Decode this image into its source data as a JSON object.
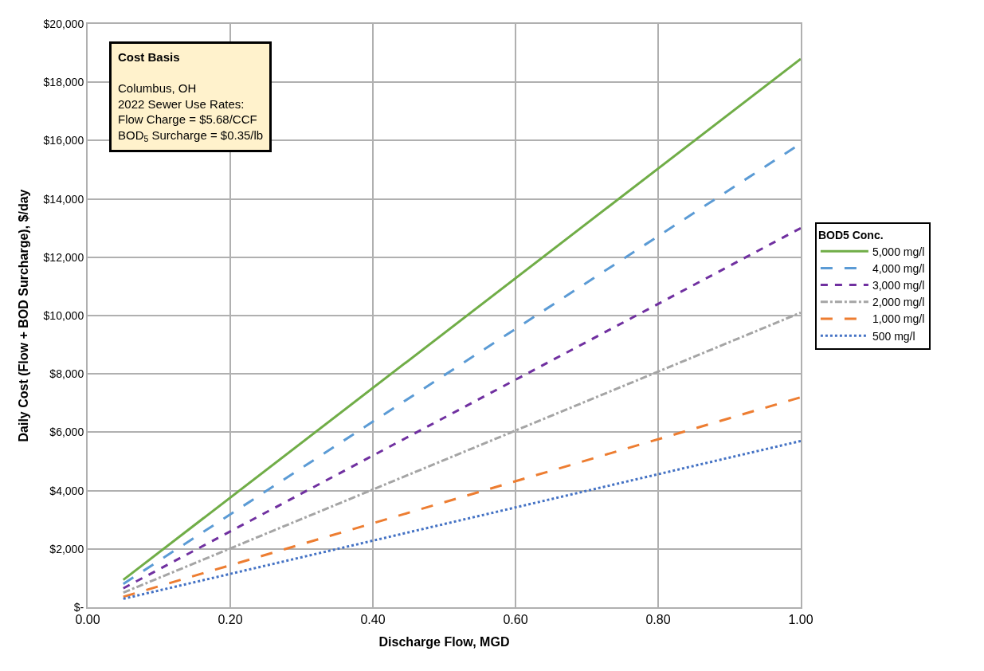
{
  "chart_data": {
    "type": "line",
    "xlabel": "Discharge Flow, MGD",
    "ylabel": "Daily Cost (Flow + BOD Surcharge), $/day",
    "legend_title": "BOD5 Conc.",
    "x": [
      0.05,
      1.0
    ],
    "series": [
      {
        "name": "5,000 mg/l",
        "color": "#70ad47",
        "line_style": "solid",
        "values": [
          940,
          18800
        ]
      },
      {
        "name": "4,000 mg/l",
        "color": "#5b9bd5",
        "line_style": "longdash",
        "values": [
          800,
          15900
        ]
      },
      {
        "name": "3,000 mg/l",
        "color": "#7030a0",
        "line_style": "dashed",
        "values": [
          650,
          13000
        ]
      },
      {
        "name": "2,000 mg/l",
        "color": "#a5a5a5",
        "line_style": "dashdot",
        "values": [
          500,
          10100
        ]
      },
      {
        "name": "1,000 mg/l",
        "color": "#ed7d31",
        "line_style": "longdash",
        "values": [
          360,
          7200
        ]
      },
      {
        "name": "500 mg/l",
        "color": "#4472c4",
        "line_style": "dotted",
        "values": [
          290,
          5700
        ]
      }
    ],
    "xlim": [
      0,
      1.0
    ],
    "xticks": [
      {
        "value": 0,
        "label": "0.00"
      },
      {
        "value": 0.2,
        "label": "0.20"
      },
      {
        "value": 0.4,
        "label": "0.40"
      },
      {
        "value": 0.6,
        "label": "0.60"
      },
      {
        "value": 0.8,
        "label": "0.80"
      },
      {
        "value": 1.0,
        "label": "1.00"
      }
    ],
    "ylim": [
      0,
      20000
    ],
    "yticks": [
      {
        "value": 0,
        "label": "$-"
      },
      {
        "value": 2000,
        "label": "$2,000"
      },
      {
        "value": 4000,
        "label": "$4,000"
      },
      {
        "value": 6000,
        "label": "$6,000"
      },
      {
        "value": 8000,
        "label": "$8,000"
      },
      {
        "value": 10000,
        "label": "$10,000"
      },
      {
        "value": 12000,
        "label": "$12,000"
      },
      {
        "value": 14000,
        "label": "$14,000"
      },
      {
        "value": 16000,
        "label": "$16,000"
      },
      {
        "value": 18000,
        "label": "$18,000"
      },
      {
        "value": 20000,
        "label": "$20,000"
      }
    ],
    "grid": true,
    "legend": "right",
    "marker": "none",
    "annotations": [
      "Cost Basis\n\nColumbus, OH\n2022 Sewer Use Rates:\nFlow Charge = $5.68/CCF\nBOD$_{5}$ Surcharge = $0.35/lb"
    ]
  }
}
